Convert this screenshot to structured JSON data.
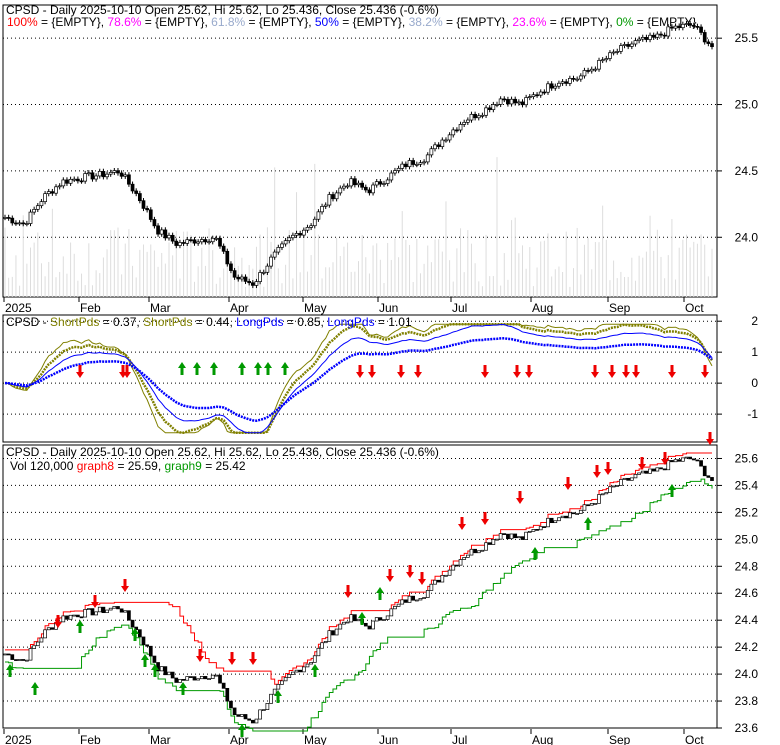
{
  "chart_data": [
    {
      "type": "candlestick",
      "title": "CPSD - Daily 2025-10-10 Open 25.62, Hi 25.62, Lo 25.436, Close 25.436 (-0.6%)",
      "fib_legend": [
        {
          "label": "100%",
          "color": "#ff0000"
        },
        {
          "label": "78.6%",
          "color": "#ff00ff"
        },
        {
          "label": "61.8%",
          "color": "#99aacc"
        },
        {
          "label": "50%",
          "color": "#0000ff"
        },
        {
          "label": "38.2%",
          "color": "#99aacc"
        },
        {
          "label": "23.6%",
          "color": "#ff00ff"
        },
        {
          "label": "0%",
          "color": "#009900"
        }
      ],
      "fib_value": "{EMPTY}",
      "yticks": [
        "25.5",
        "25.0",
        "24.5",
        "24.0"
      ],
      "ylim": [
        23.55,
        25.75
      ],
      "xticks": [
        "2025",
        "Feb",
        "Mar",
        "Apr",
        "May",
        "Jun",
        "Jul",
        "Aug",
        "Sep",
        "Oct"
      ],
      "weekly_close": [
        24.15,
        24.1,
        24.3,
        24.42,
        24.45,
        24.47,
        24.5,
        24.3,
        24.05,
        23.95,
        23.98,
        24.0,
        23.7,
        23.65,
        23.85,
        24.0,
        24.1,
        24.3,
        24.42,
        24.35,
        24.45,
        24.55,
        24.6,
        24.75,
        24.88,
        24.95,
        25.05,
        25.0,
        25.1,
        25.18,
        25.2,
        25.3,
        25.4,
        25.47,
        25.5,
        25.58,
        25.6,
        25.436
      ]
    },
    {
      "type": "line",
      "title_prefix": "CPSD - ",
      "series": [
        {
          "name": "ShortPds",
          "value": "0.37",
          "color": "#808000"
        },
        {
          "name": "ShortPds",
          "value": "0.44",
          "color": "#808000"
        },
        {
          "name": "LongPds",
          "value": "0.85",
          "color": "#0000ff"
        },
        {
          "name": "LongPds",
          "value": "1.01",
          "color": "#0000ff"
        }
      ],
      "yticks": [
        "2",
        "1",
        "0",
        "-1"
      ],
      "ylim": [
        -1.9,
        2.2
      ]
    },
    {
      "type": "candlestick",
      "title": "CPSD - Daily 2025-10-10 Open 25.62, Hi 25.62, Lo 25.436, Close 25.436 (-0.6%)",
      "vol_label": "Vol 120,000",
      "graph8": {
        "name": "graph8",
        "value": "25.59",
        "color": "#ff0000"
      },
      "graph9": {
        "name": "graph9",
        "value": "25.42",
        "color": "#009900"
      },
      "yticks": [
        "25.6",
        "25.4",
        "25.2",
        "25.0",
        "24.8",
        "24.6",
        "24.4",
        "24.2",
        "24.0",
        "23.8",
        "23.6"
      ],
      "ylim": [
        23.6,
        25.7
      ],
      "xticks": [
        "2025",
        "Feb",
        "Mar",
        "Apr",
        "May",
        "Jun",
        "Jul",
        "Aug",
        "Sep",
        "Oct"
      ]
    }
  ]
}
